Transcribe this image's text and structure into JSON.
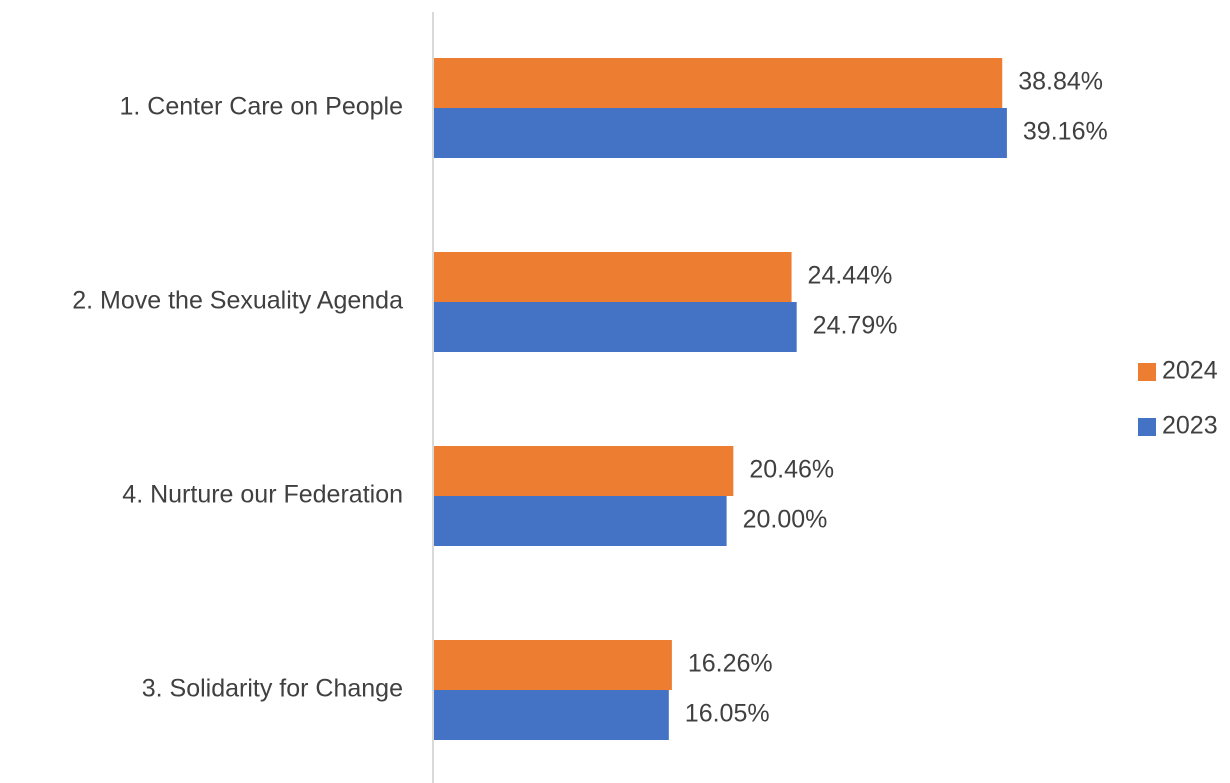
{
  "chart_data": {
    "type": "bar",
    "orientation": "horizontal",
    "categories": [
      "1. Center Care on People",
      "2. Move the Sexuality Agenda",
      "4. Nurture our Federation",
      "3. Solidarity for Change"
    ],
    "series": [
      {
        "name": "2024",
        "color": "#ed7d31",
        "values": [
          38.84,
          24.44,
          20.46,
          16.26
        ],
        "value_labels": [
          "38.84%",
          "24.44%",
          "20.46%",
          "16.26%"
        ]
      },
      {
        "name": "2023",
        "color": "#4472c4",
        "values": [
          39.16,
          24.79,
          20,
          16.05
        ],
        "value_labels": [
          "39.16%",
          "24.79%",
          "20.00%",
          "16.05%"
        ]
      }
    ],
    "legend": "right"
  }
}
